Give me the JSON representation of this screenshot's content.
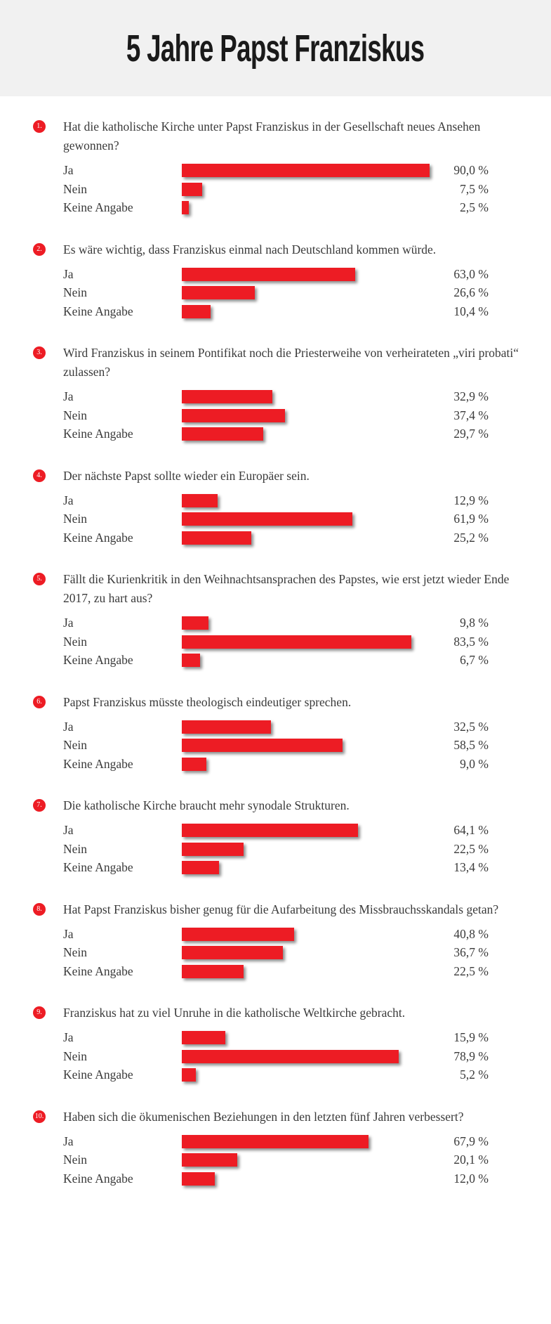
{
  "title": "5 Jahre Papst Franziskus",
  "chart_data": {
    "type": "bar",
    "orientation": "horizontal",
    "title": "5 Jahre Papst Franziskus",
    "bar_color": "#ed1c24",
    "unit": "%",
    "xlim": [
      0,
      100
    ],
    "categories": [
      "Ja",
      "Nein",
      "Keine Angabe"
    ],
    "questions": [
      {
        "number": "1.",
        "text": "Hat die katholische Kirche unter Papst Franziskus in der Gesellschaft neues Ansehen gewonnen?",
        "values": [
          90.0,
          7.5,
          2.5
        ],
        "labels": [
          "90,0 %",
          "7,5 %",
          "2,5 %"
        ]
      },
      {
        "number": "2.",
        "text": "Es wäre wichtig, dass Franziskus einmal nach Deutschland kommen würde.",
        "values": [
          63.0,
          26.6,
          10.4
        ],
        "labels": [
          "63,0 %",
          "26,6 %",
          "10,4 %"
        ]
      },
      {
        "number": "3.",
        "text": "Wird Franziskus in seinem Pontifikat noch die Priesterweihe von verheirateten „viri probati“ zulassen?",
        "values": [
          32.9,
          37.4,
          29.7
        ],
        "labels": [
          "32,9 %",
          "37,4 %",
          "29,7 %"
        ]
      },
      {
        "number": "4.",
        "text": "Der nächste Papst sollte wieder ein Europäer sein.",
        "values": [
          12.9,
          61.9,
          25.2
        ],
        "labels": [
          "12,9 %",
          "61,9 %",
          "25,2 %"
        ]
      },
      {
        "number": "5.",
        "text": "Fällt die Kurienkritik in den Weihnachtsansprachen des Papstes, wie erst jetzt wieder Ende 2017, zu hart aus?",
        "values": [
          9.8,
          83.5,
          6.7
        ],
        "labels": [
          "9,8 %",
          "83,5 %",
          "6,7 %"
        ]
      },
      {
        "number": "6.",
        "text": "Papst Franziskus müsste theologisch eindeutiger sprechen.",
        "values": [
          32.5,
          58.5,
          9.0
        ],
        "labels": [
          "32,5 %",
          "58,5 %",
          "9,0 %"
        ]
      },
      {
        "number": "7.",
        "text": "Die katholische Kirche braucht mehr synodale Strukturen.",
        "values": [
          64.1,
          22.5,
          13.4
        ],
        "labels": [
          "64,1 %",
          "22,5 %",
          "13,4 %"
        ]
      },
      {
        "number": "8.",
        "text": "Hat Papst Franziskus bisher genug für die Aufarbeitung des Missbrauchsskandals getan?",
        "values": [
          40.8,
          36.7,
          22.5
        ],
        "labels": [
          "40,8 %",
          "36,7 %",
          "22,5 %"
        ]
      },
      {
        "number": "9.",
        "text": "Franziskus hat zu viel Unruhe in die katholische Weltkirche gebracht.",
        "values": [
          15.9,
          78.9,
          5.2
        ],
        "labels": [
          "15,9 %",
          "78,9 %",
          "5,2 %"
        ]
      },
      {
        "number": "10.",
        "text": "Haben sich die ökumenischen Beziehungen in den letzten fünf Jahren verbessert?",
        "values": [
          67.9,
          20.1,
          12.0
        ],
        "labels": [
          "67,9 %",
          "20,1 %",
          "12,0 %"
        ]
      }
    ]
  }
}
